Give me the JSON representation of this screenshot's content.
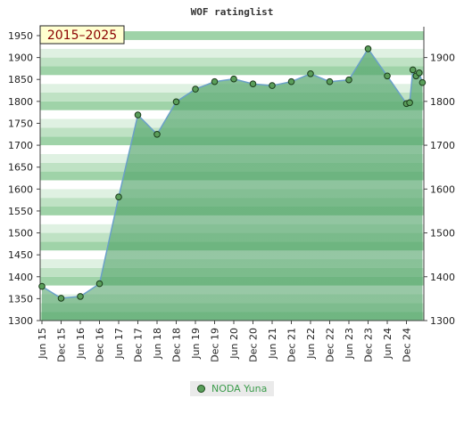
{
  "chart_data": {
    "type": "area",
    "title": "WOF ratinglist",
    "badge": "2015–2025",
    "ylim": [
      1300,
      1950
    ],
    "yticks_left": [
      "1950",
      "1900",
      "1850",
      "1800",
      "1750",
      "1700",
      "1650",
      "1600",
      "1550",
      "1500",
      "1450",
      "1400",
      "1350",
      "1300"
    ],
    "yticks_right": [
      "1900",
      "1800",
      "1700",
      "1600",
      "1500",
      "1400",
      "1300"
    ],
    "x_tick_labels": [
      "Jun 15",
      "Dec 15",
      "Jun 16",
      "Dec 16",
      "Jun 17",
      "Dec 17",
      "Jun 18",
      "Dec 18",
      "Jun 19",
      "Dec 19",
      "Jun 20",
      "Dec 20",
      "Jun 21",
      "Dec 21",
      "Jun 22",
      "Dec 22",
      "Jun 23",
      "Dec 23",
      "Jun 24",
      "Dec 24"
    ],
    "grid": true,
    "legend_position": "bottom-center",
    "series": [
      {
        "name": "NODA Yuna",
        "color": "#5a9e5a",
        "points": [
          {
            "x": "2015-06",
            "y": 1378
          },
          {
            "x": "2015-12",
            "y": 1351
          },
          {
            "x": "2016-06",
            "y": 1355
          },
          {
            "x": "2016-12",
            "y": 1384
          },
          {
            "x": "2017-06",
            "y": 1582
          },
          {
            "x": "2017-12",
            "y": 1769
          },
          {
            "x": "2018-06",
            "y": 1725
          },
          {
            "x": "2018-12",
            "y": 1799
          },
          {
            "x": "2019-06",
            "y": 1828
          },
          {
            "x": "2019-12",
            "y": 1845
          },
          {
            "x": "2020-06",
            "y": 1851
          },
          {
            "x": "2020-12",
            "y": 1840
          },
          {
            "x": "2021-06",
            "y": 1836
          },
          {
            "x": "2021-12",
            "y": 1845
          },
          {
            "x": "2022-06",
            "y": 1863
          },
          {
            "x": "2022-12",
            "y": 1845
          },
          {
            "x": "2023-06",
            "y": 1849
          },
          {
            "x": "2023-12",
            "y": 1920
          },
          {
            "x": "2024-06",
            "y": 1858
          },
          {
            "x": "2024-12",
            "y": 1795
          },
          {
            "x": "2025-01",
            "y": 1797
          },
          {
            "x": "2025-02",
            "y": 1872
          },
          {
            "x": "2025-03",
            "y": 1858
          },
          {
            "x": "2025-04",
            "y": 1865
          },
          {
            "x": "2025-05",
            "y": 1843
          }
        ]
      }
    ]
  }
}
